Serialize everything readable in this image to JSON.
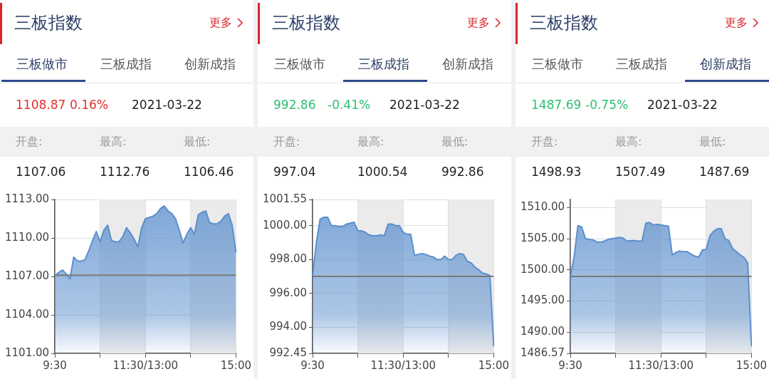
{
  "chart_data": [
    {
      "type": "area",
      "title": "三板指数",
      "annotations": [
        "更多",
        "三板做市",
        "三板成指",
        "创新成指",
        "1108.87",
        "0.16%",
        "2021-03-22",
        "开盘:",
        "最高:",
        "最低:",
        "1107.06",
        "1112.76",
        "1106.46"
      ],
      "categories": [
        "9:30",
        null,
        null,
        null,
        null,
        null,
        null,
        null,
        null,
        null,
        null,
        null,
        null,
        null,
        null,
        null,
        null,
        null,
        null,
        null,
        null,
        null,
        null,
        null,
        "11:30/13:00",
        null,
        null,
        null,
        null,
        null,
        null,
        null,
        null,
        null,
        null,
        null,
        null,
        null,
        null,
        null,
        null,
        null,
        null,
        null,
        null,
        null,
        null,
        null,
        "15:00"
      ],
      "series": [
        {
          "color": "#5b8fcd",
          "values": [
            1107.06,
            1107.3,
            1107.5,
            1107.2,
            1106.8,
            1108.5,
            1108.2,
            1108.2,
            1108.3,
            1109.0,
            1109.8,
            1110.5,
            1109.7,
            1110.6,
            1111.0,
            1109.8,
            1109.7,
            1109.7,
            1110.1,
            1110.8,
            1110.4,
            1109.9,
            1109.3,
            1110.8,
            1111.5,
            1111.6,
            1111.7,
            1111.9,
            1112.3,
            1112.5,
            1112.1,
            1111.9,
            1111.5,
            1110.6,
            1109.6,
            1110.3,
            1110.8,
            1110.3,
            1111.8,
            1112.0,
            1112.1,
            1111.2,
            1111.1,
            1111.1,
            1111.3,
            1111.7,
            1111.9,
            1111.0,
            1108.87
          ]
        }
      ],
      "ylim": [
        1101,
        1113
      ],
      "yticks": [
        {
          "value": 1101,
          "label": "1101.00"
        },
        {
          "value": 1104,
          "label": "1104.00"
        },
        {
          "value": 1107,
          "label": "1107.00"
        },
        {
          "value": 1110,
          "label": "1110.00"
        },
        {
          "value": 1113,
          "label": "1113.00"
        }
      ],
      "ref_lines": [
        {
          "axis": "y",
          "value": 1107.1,
          "color": "#7a7a7a"
        }
      ],
      "grid": true
    },
    {
      "type": "area",
      "title": "三板指数",
      "annotations": [
        "更多",
        "三板做市",
        "三板成指",
        "创新成指",
        "992.86",
        "-0.41%",
        "2021-03-22",
        "开盘:",
        "最高:",
        "最低:",
        "997.04",
        "1000.54",
        "992.86"
      ],
      "categories": [
        "9:30",
        null,
        null,
        null,
        null,
        null,
        null,
        null,
        null,
        null,
        null,
        null,
        null,
        null,
        null,
        null,
        null,
        null,
        null,
        null,
        null,
        null,
        null,
        null,
        "11:30/13:00",
        null,
        null,
        null,
        null,
        null,
        null,
        null,
        null,
        null,
        null,
        null,
        null,
        null,
        null,
        null,
        null,
        null,
        null,
        null,
        null,
        null,
        null,
        null,
        "15:00"
      ],
      "series": [
        {
          "color": "#5b8fcd",
          "values": [
            997.04,
            999.0,
            1000.4,
            1000.5,
            1000.5,
            1000.0,
            1000.0,
            999.95,
            999.95,
            1000.1,
            1000.15,
            1000.2,
            999.7,
            999.7,
            999.6,
            999.45,
            999.4,
            999.4,
            999.45,
            999.4,
            1000.1,
            1000.1,
            1000.0,
            1000.0,
            999.6,
            999.5,
            999.5,
            998.25,
            998.3,
            998.35,
            998.3,
            998.2,
            998.15,
            998.0,
            998.0,
            998.2,
            998.0,
            998.0,
            998.25,
            998.35,
            998.3,
            997.9,
            997.8,
            997.55,
            997.4,
            997.2,
            997.15,
            997.05,
            992.86
          ]
        }
      ],
      "ylim": [
        992.45,
        1001.55
      ],
      "yticks": [
        {
          "value": 992.45,
          "label": "992.45"
        },
        {
          "value": 994,
          "label": "994.00"
        },
        {
          "value": 996,
          "label": "996.00"
        },
        {
          "value": 998,
          "label": "998.00"
        },
        {
          "value": 1000,
          "label": "1000.00"
        },
        {
          "value": 1001.55,
          "label": "1001.55"
        }
      ],
      "ref_lines": [
        {
          "axis": "y",
          "value": 997.0,
          "color": "#7a7a7a"
        }
      ],
      "grid": true
    },
    {
      "type": "area",
      "title": "三板指数",
      "annotations": [
        "更多",
        "三板做市",
        "三板成指",
        "创新成指",
        "1487.69",
        "-0.75%",
        "2021-03-22",
        "开盘:",
        "最高:",
        "最低:",
        "1498.93",
        "1507.49",
        "1487.69"
      ],
      "categories": [
        "9:30",
        null,
        null,
        null,
        null,
        null,
        null,
        null,
        null,
        null,
        null,
        null,
        null,
        null,
        null,
        null,
        null,
        null,
        null,
        null,
        null,
        null,
        null,
        null,
        "11:30/13:00",
        null,
        null,
        null,
        null,
        null,
        null,
        null,
        null,
        null,
        null,
        null,
        null,
        null,
        null,
        null,
        null,
        null,
        null,
        null,
        null,
        null,
        null,
        null,
        "15:00"
      ],
      "series": [
        {
          "color": "#5b8fcd",
          "values": [
            1498.9,
            1502.1,
            1507.1,
            1506.9,
            1505.0,
            1504.9,
            1504.8,
            1504.5,
            1504.4,
            1504.6,
            1504.9,
            1505.0,
            1505.1,
            1505.2,
            1505.1,
            1504.6,
            1504.7,
            1504.7,
            1504.6,
            1504.6,
            1507.5,
            1507.6,
            1507.2,
            1507.3,
            1507.2,
            1507.1,
            1507.0,
            1502.4,
            1502.8,
            1503.0,
            1502.9,
            1502.9,
            1502.5,
            1502.2,
            1502.0,
            1503.2,
            1503.3,
            1505.5,
            1506.2,
            1506.6,
            1506.6,
            1505.0,
            1504.7,
            1503.4,
            1502.9,
            1502.4,
            1502.0,
            1501.1,
            1487.69
          ]
        }
      ],
      "ylim": [
        1486.57,
        1511.3
      ],
      "yticks": [
        {
          "value": 1486.57,
          "label": "1486.57"
        },
        {
          "value": 1490,
          "label": "1490.00"
        },
        {
          "value": 1495,
          "label": "1495.00"
        },
        {
          "value": 1500,
          "label": "1500.00"
        },
        {
          "value": 1505,
          "label": "1505.00"
        },
        {
          "value": 1510,
          "label": "1510.00"
        }
      ],
      "ref_lines": [
        {
          "axis": "y",
          "value": 1498.93,
          "color": "#7a7a7a"
        }
      ],
      "grid": true
    }
  ]
}
